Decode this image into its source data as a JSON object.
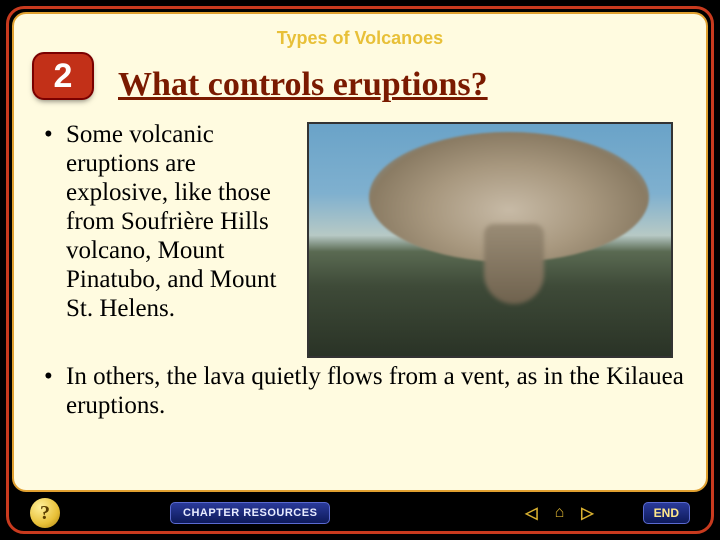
{
  "colors": {
    "frame_border": "#c83a1e",
    "inner_border": "#e0a030",
    "content_bg": "#fffbe0",
    "header_text": "#e8c038",
    "title_text": "#7a1a00",
    "badge_bg": "#c23018",
    "nav_arrow": "#d8b030"
  },
  "header": {
    "label": "Types of Volcanoes"
  },
  "section": {
    "number": "2",
    "title": "What controls eruptions?"
  },
  "bullets": [
    "Some volcanic eruptions are explosive, like those from Soufrière Hills volcano, Mount Pinatubo, and Mount St. Helens.",
    "In others, the lava quietly flows from a vent, as in the Kilauea eruptions."
  ],
  "image": {
    "alt": "Explosive volcanic eruption with large ash cloud"
  },
  "footer": {
    "help": "?",
    "chapter": "CHAPTER RESOURCES",
    "end": "END",
    "nav_prev": "◁",
    "nav_home": "⌂",
    "nav_next": "▷"
  }
}
